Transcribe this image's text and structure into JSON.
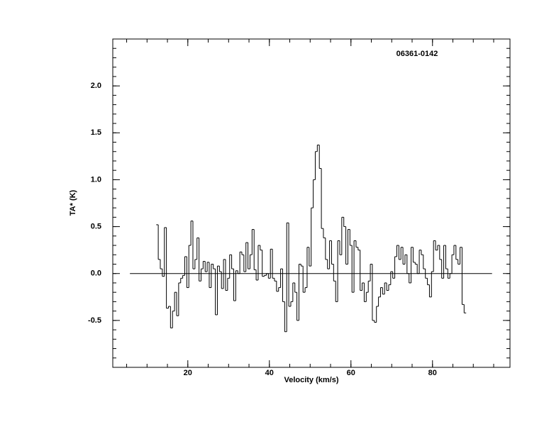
{
  "chart_data": {
    "type": "step",
    "title": "06361-0142",
    "x_label": "Velocity (km/s)",
    "y_label": "TA* (K)",
    "xlim": [
      1.6,
      99
    ],
    "ylim": [
      -1.0,
      2.5
    ],
    "xticks": [
      20,
      40,
      60,
      80
    ],
    "yticks": [
      {
        "value": -0.5,
        "label": "-0.5"
      },
      {
        "value": 0,
        "label": "0.0"
      },
      0.5,
      {
        "value": 1,
        "label": "1.0"
      },
      1.5,
      {
        "value": 2,
        "label": "2.0"
      }
    ],
    "minor_ticks": {
      "x": 4,
      "y": 5
    },
    "color": "#000000",
    "baseline": {
      "x": [
        5.8,
        94.6
      ],
      "y": 0
    },
    "x": [
      12.5,
      13,
      13.5,
      14,
      14.5,
      15,
      15.5,
      16,
      16.5,
      17,
      17.5,
      18,
      18.5,
      19,
      19.5,
      20,
      20.5,
      21,
      21.5,
      22,
      22.5,
      23,
      23.5,
      24,
      24.5,
      25,
      25.5,
      26,
      26.5,
      27,
      27.5,
      28,
      28.5,
      29,
      29.5,
      30,
      30.5,
      31,
      31.5,
      32,
      32.5,
      33,
      33.5,
      34,
      34.5,
      35,
      35.5,
      36,
      36.5,
      37,
      37.5,
      38,
      38.5,
      39,
      39.5,
      40,
      40.5,
      41,
      41.5,
      42,
      42.5,
      43,
      43.5,
      44,
      44.5,
      45,
      45.5,
      46,
      46.5,
      47,
      47.5,
      48,
      48.5,
      49,
      49.5,
      50,
      50.5,
      51,
      51.5,
      52,
      52.5,
      53,
      53.5,
      54,
      54.5,
      55,
      55.5,
      56,
      56.5,
      57,
      57.5,
      58,
      58.5,
      59,
      59.5,
      60,
      60.5,
      61,
      61.5,
      62,
      62.5,
      63,
      63.5,
      64,
      64.5,
      65,
      65.5,
      66,
      66.5,
      67,
      67.5,
      68,
      68.5,
      69,
      69.5,
      70,
      70.5,
      71,
      71.5,
      72,
      72.5,
      73,
      73.5,
      74,
      74.5,
      75,
      75.5,
      76,
      76.5,
      77,
      77.5,
      78,
      78.5,
      79,
      79.5,
      80,
      80.5,
      81,
      81.5,
      82,
      82.5,
      83,
      83.5,
      84,
      84.5,
      85,
      85.5,
      86,
      86.5,
      87,
      87.5,
      88
    ],
    "values": [
      0.52,
      0.15,
      0.05,
      -0.03,
      0.49,
      -0.37,
      -0.35,
      -0.58,
      -0.4,
      -0.2,
      -0.45,
      -0.1,
      -0.05,
      -0.02,
      0.18,
      -0.15,
      0.3,
      0.56,
      0.05,
      0.15,
      0.38,
      -0.08,
      0.05,
      0.13,
      0.02,
      0.12,
      -0.15,
      0.1,
      0.05,
      -0.44,
      0.08,
      0.02,
      -0.16,
      0.15,
      -0.18,
      -0.05,
      0.2,
      0.05,
      -0.29,
      0.03,
      0,
      0.23,
      0.2,
      0.02,
      0.33,
      0.05,
      0.2,
      0.47,
      0.04,
      -0.07,
      0.3,
      0.25,
      -0.03,
      -0.02,
      0,
      -0.05,
      0.26,
      -0.05,
      -0.08,
      -0.19,
      -0.15,
      0.05,
      -0.3,
      -0.62,
      0.54,
      -0.35,
      -0.3,
      -0.1,
      -0.2,
      -0.5,
      0.1,
      0.08,
      -0.2,
      -0.15,
      0.28,
      0.08,
      0.7,
      1.0,
      1.3,
      1.37,
      1.12,
      0.48,
      0.38,
      0.15,
      0.05,
      0.35,
      0.1,
      -0.08,
      -0.3,
      0.35,
      0.2,
      0.6,
      0.5,
      0.1,
      0.47,
      0.3,
      -0.2,
      0.35,
      0.28,
      0.25,
      -0.18,
      -0.1,
      -0.3,
      -0.2,
      -0.08,
      0.1,
      -0.5,
      -0.52,
      -0.35,
      -0.25,
      -0.15,
      -0.22,
      -0.1,
      -0.18,
      -0.12,
      0.02,
      -0.05,
      0.18,
      0.3,
      0.15,
      0.28,
      0.1,
      0.2,
      0,
      -0.1,
      0.28,
      0.12,
      0.1,
      0,
      0.25,
      0.2,
      0.05,
      -0.05,
      -0.12,
      -0.25,
      0.02,
      0.35,
      0.25,
      0.3,
      0.15,
      -0.05,
      0.3,
      0.05,
      -0.05,
      0,
      0.2,
      0.3,
      0.15,
      0.1,
      0.28,
      -0.33,
      -0.42
    ]
  }
}
